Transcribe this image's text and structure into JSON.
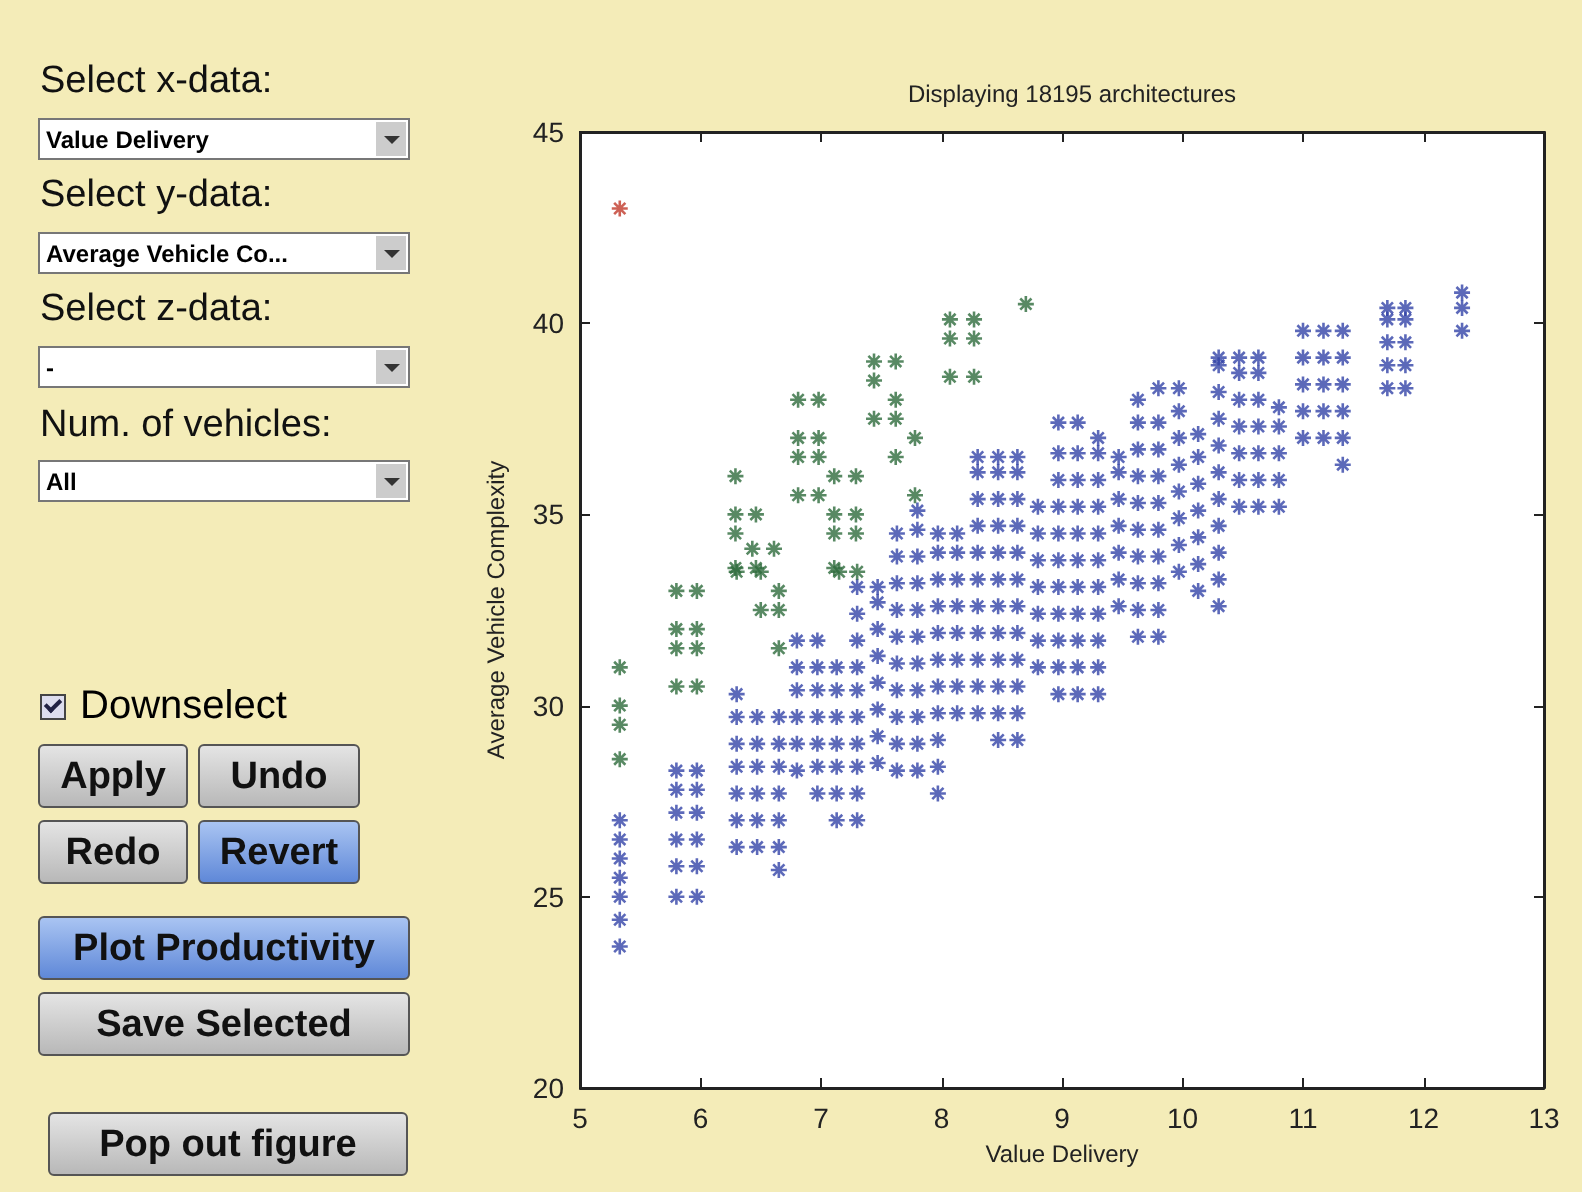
{
  "chart_data": [
    {
      "type": "scatter",
      "title": "Displaying 18195 architectures",
      "xlabel": "Value Delivery",
      "ylabel": "Average Vehicle Complexity",
      "xlim": [
        5,
        13
      ],
      "ylim": [
        20,
        45
      ],
      "xticks": [
        5,
        6,
        7,
        8,
        9,
        10,
        11,
        12,
        13
      ],
      "yticks": [
        20,
        25,
        30,
        35,
        40,
        45
      ],
      "grid": false,
      "marker": "cross",
      "series": [
        {
          "color": "#3344a8",
          "x": [
            5.33,
            5.33,
            5.33,
            5.33,
            5.33,
            5.33,
            5.33,
            5.8,
            5.8,
            5.8,
            5.8,
            5.8,
            5.8,
            5.97,
            5.97,
            5.97,
            5.97,
            5.97,
            5.97,
            6.3,
            6.3,
            6.3,
            6.3,
            6.3,
            6.3,
            6.3,
            6.47,
            6.47,
            6.47,
            6.47,
            6.47,
            6.47,
            6.65,
            6.65,
            6.65,
            6.65,
            6.65,
            6.65,
            6.65,
            6.8,
            6.8,
            6.8,
            6.8,
            6.8,
            6.8,
            6.97,
            6.97,
            6.97,
            6.97,
            6.97,
            6.97,
            6.97,
            7.13,
            7.13,
            7.13,
            7.13,
            7.13,
            7.13,
            7.13,
            7.3,
            7.3,
            7.3,
            7.3,
            7.3,
            7.3,
            7.3,
            7.3,
            7.3,
            7.3,
            7.47,
            7.47,
            7.47,
            7.47,
            7.47,
            7.47,
            7.47,
            7.47,
            7.63,
            7.63,
            7.63,
            7.63,
            7.63,
            7.63,
            7.63,
            7.63,
            7.63,
            7.63,
            7.8,
            7.8,
            7.8,
            7.8,
            7.8,
            7.8,
            7.8,
            7.8,
            7.8,
            7.8,
            7.8,
            7.97,
            7.97,
            7.97,
            7.97,
            7.97,
            7.97,
            7.97,
            7.97,
            7.97,
            7.97,
            7.97,
            8.13,
            8.13,
            8.13,
            8.13,
            8.13,
            8.13,
            8.13,
            8.13,
            8.3,
            8.3,
            8.3,
            8.3,
            8.3,
            8.3,
            8.3,
            8.3,
            8.3,
            8.3,
            8.3,
            8.47,
            8.47,
            8.47,
            8.47,
            8.47,
            8.47,
            8.47,
            8.47,
            8.47,
            8.47,
            8.47,
            8.47,
            8.63,
            8.63,
            8.63,
            8.63,
            8.63,
            8.63,
            8.63,
            8.63,
            8.63,
            8.63,
            8.63,
            8.63,
            8.8,
            8.8,
            8.8,
            8.8,
            8.8,
            8.8,
            8.8,
            8.97,
            8.97,
            8.97,
            8.97,
            8.97,
            8.97,
            8.97,
            8.97,
            8.97,
            8.97,
            8.97,
            9.13,
            9.13,
            9.13,
            9.13,
            9.13,
            9.13,
            9.13,
            9.13,
            9.13,
            9.13,
            9.13,
            9.3,
            9.3,
            9.3,
            9.3,
            9.3,
            9.3,
            9.3,
            9.3,
            9.3,
            9.3,
            9.3,
            9.47,
            9.47,
            9.47,
            9.47,
            9.47,
            9.47,
            9.47,
            9.63,
            9.63,
            9.63,
            9.63,
            9.63,
            9.63,
            9.63,
            9.63,
            9.63,
            9.63,
            9.8,
            9.8,
            9.8,
            9.8,
            9.8,
            9.8,
            9.8,
            9.8,
            9.8,
            9.8,
            9.97,
            9.97,
            9.97,
            9.97,
            9.97,
            9.97,
            9.97,
            9.97,
            10.13,
            10.13,
            10.13,
            10.13,
            10.13,
            10.13,
            10.13,
            10.3,
            10.3,
            10.3,
            10.3,
            10.3,
            10.3,
            10.3,
            10.3,
            10.3,
            10.3,
            10.3,
            10.47,
            10.47,
            10.47,
            10.47,
            10.47,
            10.47,
            10.47,
            10.63,
            10.63,
            10.63,
            10.63,
            10.63,
            10.63,
            10.63,
            10.8,
            10.8,
            10.8,
            10.8,
            10.8,
            11.0,
            11.0,
            11.0,
            11.0,
            11.0,
            11.17,
            11.17,
            11.17,
            11.17,
            11.17,
            11.33,
            11.33,
            11.33,
            11.33,
            11.33,
            11.33,
            11.7,
            11.7,
            11.7,
            11.7,
            11.7,
            11.85,
            11.85,
            11.85,
            11.85,
            11.85,
            12.32,
            12.32,
            12.32
          ],
          "values": [
            23.7,
            24.4,
            25.0,
            25.5,
            26.0,
            26.5,
            27.0,
            25.0,
            25.8,
            26.5,
            27.2,
            27.8,
            28.3,
            25.0,
            25.8,
            26.5,
            27.2,
            27.8,
            28.3,
            26.3,
            27.0,
            27.7,
            28.4,
            29.0,
            29.7,
            30.3,
            26.3,
            27.0,
            27.7,
            28.4,
            29.0,
            29.7,
            25.7,
            26.3,
            27.0,
            27.7,
            28.4,
            29.0,
            29.7,
            28.3,
            29.0,
            29.7,
            30.4,
            31.0,
            31.7,
            27.7,
            28.4,
            29.0,
            29.7,
            30.4,
            31.0,
            31.7,
            27.0,
            27.7,
            28.4,
            29.0,
            29.7,
            30.4,
            31.0,
            27.0,
            27.7,
            28.4,
            29.0,
            29.7,
            30.4,
            31.0,
            31.7,
            32.4,
            33.1,
            28.5,
            29.2,
            29.9,
            30.6,
            31.3,
            32.0,
            32.7,
            33.1,
            28.3,
            29.0,
            29.7,
            30.4,
            31.1,
            31.8,
            32.5,
            33.2,
            33.9,
            34.5,
            28.3,
            29.0,
            29.7,
            30.4,
            31.1,
            31.8,
            32.5,
            33.2,
            33.9,
            34.6,
            35.1,
            27.7,
            28.4,
            29.1,
            29.8,
            30.5,
            31.2,
            31.9,
            32.6,
            33.3,
            34.0,
            34.5,
            29.8,
            30.5,
            31.2,
            31.9,
            32.6,
            33.3,
            34.0,
            34.5,
            29.8,
            30.5,
            31.2,
            31.9,
            32.6,
            33.3,
            34.0,
            34.7,
            35.4,
            36.1,
            36.5,
            29.1,
            29.8,
            30.5,
            31.2,
            31.9,
            32.6,
            33.3,
            34.0,
            34.7,
            35.4,
            36.1,
            36.5,
            29.1,
            29.8,
            30.5,
            31.2,
            31.9,
            32.6,
            33.3,
            34.0,
            34.7,
            35.4,
            36.1,
            36.5,
            31.0,
            31.7,
            32.4,
            33.1,
            33.8,
            34.5,
            35.2,
            30.3,
            31.0,
            31.7,
            32.4,
            33.1,
            33.8,
            34.5,
            35.2,
            35.9,
            36.6,
            37.4,
            30.3,
            31.0,
            31.7,
            32.4,
            33.1,
            33.8,
            34.5,
            35.2,
            35.9,
            36.6,
            37.4,
            30.3,
            31.0,
            31.7,
            32.4,
            33.1,
            33.8,
            34.5,
            35.2,
            35.9,
            36.6,
            37.0,
            32.6,
            33.3,
            34.0,
            34.7,
            35.4,
            36.1,
            36.5,
            31.8,
            32.5,
            33.2,
            33.9,
            34.6,
            35.3,
            36.0,
            36.7,
            37.4,
            38.0,
            31.8,
            32.5,
            33.2,
            33.9,
            34.6,
            35.3,
            36.0,
            36.7,
            37.4,
            38.3,
            33.5,
            34.2,
            34.9,
            35.6,
            36.3,
            37.0,
            37.7,
            38.3,
            33.0,
            33.7,
            34.4,
            35.1,
            35.8,
            36.5,
            37.1,
            32.6,
            33.3,
            34.0,
            34.7,
            35.4,
            36.1,
            36.8,
            37.5,
            38.2,
            38.9,
            39.1,
            35.2,
            35.9,
            36.6,
            37.3,
            38.0,
            38.7,
            39.1,
            35.2,
            35.9,
            36.6,
            37.3,
            38.0,
            38.7,
            39.1,
            35.2,
            35.9,
            36.6,
            37.3,
            37.8,
            37.0,
            37.7,
            38.4,
            39.1,
            39.8,
            37.0,
            37.7,
            38.4,
            39.1,
            39.8,
            36.3,
            37.0,
            37.7,
            38.4,
            39.1,
            39.8,
            38.3,
            38.9,
            39.5,
            40.1,
            40.4,
            38.3,
            38.9,
            39.5,
            40.1,
            40.4,
            39.8,
            40.4,
            40.8
          ]
        },
        {
          "color": "#2e6b3c",
          "x": [
            5.33,
            5.33,
            5.33,
            5.33,
            5.8,
            5.8,
            5.8,
            5.8,
            5.97,
            5.97,
            5.97,
            5.97,
            6.3,
            6.5,
            6.65,
            6.5,
            6.65,
            6.65,
            7.15,
            7.3,
            6.29,
            6.29,
            6.46,
            6.29,
            6.43,
            6.61,
            6.29,
            6.46,
            6.81,
            6.98,
            6.81,
            6.98,
            6.81,
            6.98,
            6.81,
            6.98,
            7.11,
            7.29,
            7.11,
            7.29,
            7.11,
            7.29,
            7.11,
            7.44,
            7.62,
            7.44,
            7.44,
            7.62,
            7.62,
            7.62,
            7.78,
            7.78,
            8.07,
            8.27,
            8.07,
            8.27,
            8.07,
            8.27,
            8.7
          ],
          "values": [
            31.0,
            30.0,
            29.5,
            28.6,
            33.0,
            32.0,
            31.5,
            30.5,
            33.0,
            32.0,
            31.5,
            30.5,
            33.5,
            33.5,
            33.0,
            32.5,
            32.5,
            31.5,
            33.5,
            33.5,
            36.0,
            35.0,
            35.0,
            34.5,
            34.1,
            34.1,
            33.6,
            33.6,
            38.0,
            38.0,
            37.0,
            37.0,
            36.5,
            36.5,
            35.5,
            35.5,
            36.0,
            36.0,
            35.0,
            35.0,
            34.5,
            34.5,
            33.6,
            39.0,
            39.0,
            38.5,
            37.5,
            37.5,
            38.0,
            36.5,
            37.0,
            35.5,
            40.1,
            40.1,
            39.6,
            39.6,
            38.6,
            38.6,
            40.5
          ]
        },
        {
          "color": "#c0392b",
          "x": [
            5.33
          ],
          "values": [
            43.0
          ]
        }
      ]
    },
    {
      "type": "other",
      "annotations": [
        "Select x-data:",
        "Value Delivery",
        "Select y-data:",
        "Average Vehicle Co...",
        "Select z-data:",
        "-",
        "Num. of vehicles:",
        "All",
        "Downselect",
        "Apply",
        "Undo",
        "Redo",
        "Revert",
        "Plot Productivity",
        "Save Selected",
        "Pop out figure"
      ]
    }
  ]
}
